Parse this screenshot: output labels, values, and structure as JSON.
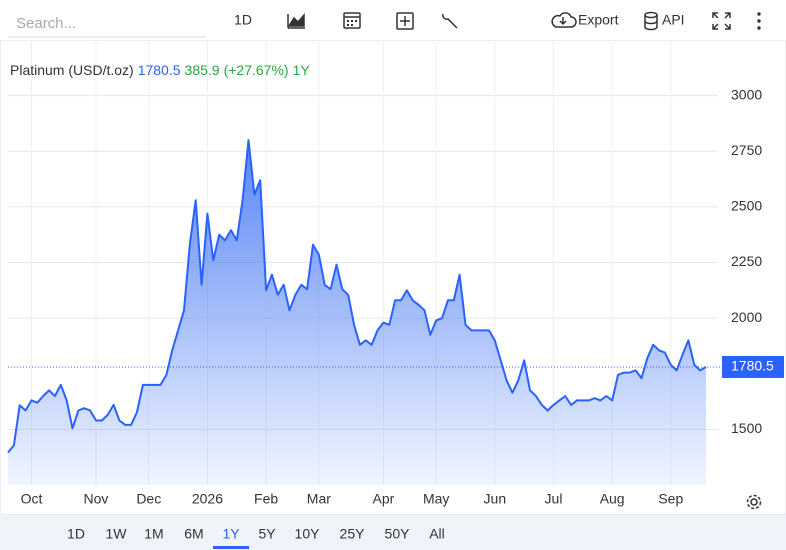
{
  "toolbar": {
    "search_placeholder": "Search...",
    "interval": "1D",
    "export": "Export",
    "api": "API"
  },
  "ranges": {
    "items": [
      "1D",
      "1W",
      "1M",
      "6M",
      "1Y",
      "5Y",
      "10Y",
      "25Y",
      "50Y",
      "All"
    ],
    "active": 4
  },
  "chart_data": {
    "type": "area",
    "title": "Platinum (USD/t.oz)",
    "change": 385.9,
    "change_percent_label": "(+27.67%)",
    "period": "1Y",
    "categories": [
      null,
      null,
      null,
      null,
      "Oct",
      null,
      null,
      null,
      null,
      null,
      null,
      null,
      null,
      null,
      null,
      "Nov",
      null,
      null,
      null,
      null,
      null,
      null,
      null,
      null,
      "Dec",
      null,
      null,
      null,
      null,
      null,
      null,
      null,
      null,
      null,
      "2026",
      null,
      null,
      null,
      null,
      null,
      null,
      null,
      null,
      null,
      "Feb",
      null,
      null,
      null,
      null,
      null,
      null,
      null,
      null,
      "Mar",
      null,
      null,
      null,
      null,
      null,
      null,
      null,
      null,
      null,
      null,
      "Apr",
      null,
      null,
      null,
      null,
      null,
      null,
      null,
      null,
      "May",
      null,
      null,
      null,
      null,
      null,
      null,
      null,
      null,
      null,
      "Jun",
      null,
      null,
      null,
      null,
      null,
      null,
      null,
      null,
      null,
      "Jul",
      null,
      null,
      null,
      null,
      null,
      null,
      null,
      null,
      null,
      "Aug",
      null,
      null,
      null,
      null,
      null,
      null,
      null,
      null,
      null,
      "Sep",
      null,
      null,
      null,
      null,
      null,
      null
    ],
    "series": [
      {
        "name": "Platinum",
        "color": "#2962ff",
        "values": [
          1396,
          1428,
          1608,
          1585,
          1630,
          1620,
          1650,
          1675,
          1650,
          1700,
          1630,
          1505,
          1585,
          1595,
          1585,
          1540,
          1540,
          1565,
          1610,
          1540,
          1520,
          1520,
          1578,
          1700,
          1700,
          1700,
          1700,
          1745,
          1855,
          1945,
          2035,
          2330,
          2530,
          2150,
          2470,
          2260,
          2375,
          2350,
          2395,
          2350,
          2530,
          2800,
          2555,
          2620,
          2125,
          2195,
          2105,
          2150,
          2035,
          2105,
          2150,
          2130,
          2330,
          2285,
          2150,
          2130,
          2240,
          2130,
          2105,
          1970,
          1880,
          1900,
          1880,
          1945,
          1980,
          1970,
          2080,
          2080,
          2125,
          2080,
          2060,
          2035,
          1925,
          1990,
          2000,
          2080,
          2080,
          2195,
          1970,
          1945,
          1945,
          1945,
          1945,
          1900,
          1810,
          1720,
          1665,
          1720,
          1810,
          1675,
          1650,
          1610,
          1585,
          1610,
          1630,
          1650,
          1610,
          1630,
          1630,
          1630,
          1640,
          1630,
          1650,
          1630,
          1745,
          1755,
          1755,
          1765,
          1730,
          1820,
          1880,
          1855,
          1845,
          1790,
          1765,
          1835,
          1900,
          1790,
          1765,
          1780.5
        ]
      }
    ],
    "ylim": [
      1250,
      3250
    ],
    "yticks": [
      1500,
      2000,
      2250,
      2500,
      2750,
      3000
    ],
    "grid": true
  }
}
